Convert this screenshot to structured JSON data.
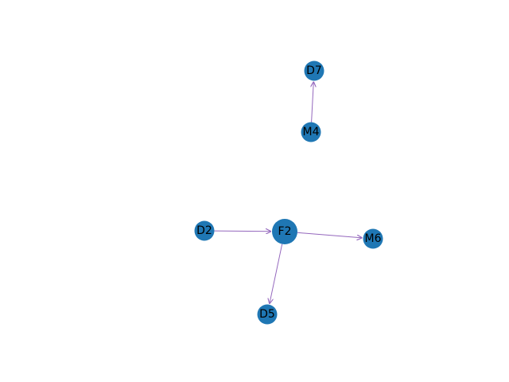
{
  "graph": {
    "node_color": "#1f77b4",
    "edge_color": "#9467bd",
    "label_color": "#000000",
    "nodes": [
      {
        "id": "F2",
        "label": "F2"
      },
      {
        "id": "D2",
        "label": "D2"
      },
      {
        "id": "M6",
        "label": "M6"
      },
      {
        "id": "D5",
        "label": "D5"
      },
      {
        "id": "M4",
        "label": "M4"
      },
      {
        "id": "D7",
        "label": "D7"
      }
    ],
    "edges": [
      {
        "source": "D2",
        "target": "F2"
      },
      {
        "source": "F2",
        "target": "M6"
      },
      {
        "source": "F2",
        "target": "D5"
      },
      {
        "source": "M4",
        "target": "D7"
      }
    ]
  }
}
